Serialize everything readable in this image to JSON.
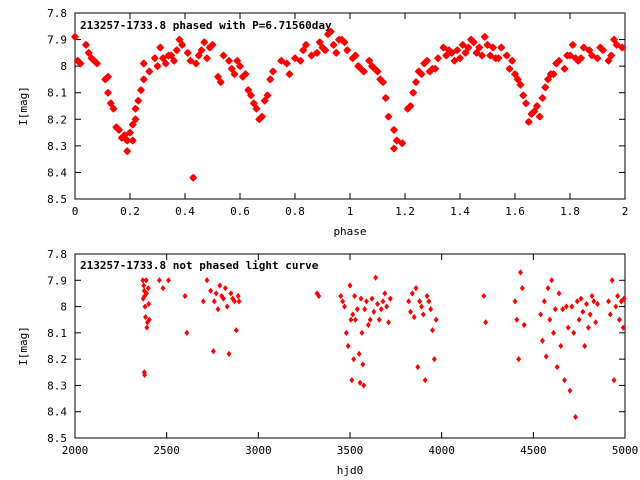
{
  "chart_data": [
    {
      "type": "scatter",
      "title": "213257-1733.8 phased with P=6.71560day",
      "xlabel": "phase",
      "ylabel": "I[mag]",
      "xlim": [
        0,
        2
      ],
      "ylim": [
        7.8,
        8.5
      ],
      "y_inverted": true,
      "x_ticks": [
        "0",
        "0.2",
        "0.4",
        "0.6",
        "0.8",
        "1",
        "1.2",
        "1.4",
        "1.6",
        "1.8",
        "2"
      ],
      "y_ticks": [
        "7.8",
        "7.9",
        "8",
        "8.1",
        "8.2",
        "8.3",
        "8.4",
        "8.5"
      ],
      "grid": false,
      "marker_color": "#ff0000",
      "marker": "star",
      "points": [
        [
          0.0,
          7.89
        ],
        [
          0.01,
          7.98
        ],
        [
          0.02,
          7.99
        ],
        [
          0.04,
          7.92
        ],
        [
          0.05,
          7.95
        ],
        [
          0.06,
          7.97
        ],
        [
          0.07,
          7.98
        ],
        [
          0.08,
          7.99
        ],
        [
          0.11,
          8.05
        ],
        [
          0.12,
          8.04
        ],
        [
          0.12,
          8.1
        ],
        [
          0.13,
          8.14
        ],
        [
          0.14,
          8.16
        ],
        [
          0.15,
          8.23
        ],
        [
          0.16,
          8.24
        ],
        [
          0.17,
          8.27
        ],
        [
          0.18,
          8.26
        ],
        [
          0.19,
          8.32
        ],
        [
          0.19,
          8.28
        ],
        [
          0.2,
          8.25
        ],
        [
          0.21,
          8.22
        ],
        [
          0.21,
          8.28
        ],
        [
          0.22,
          8.2
        ],
        [
          0.22,
          8.16
        ],
        [
          0.23,
          8.13
        ],
        [
          0.24,
          8.09
        ],
        [
          0.25,
          8.05
        ],
        [
          0.25,
          7.99
        ],
        [
          0.27,
          8.02
        ],
        [
          0.29,
          7.97
        ],
        [
          0.3,
          8.0
        ],
        [
          0.31,
          7.93
        ],
        [
          0.32,
          7.97
        ],
        [
          0.33,
          7.99
        ],
        [
          0.34,
          7.96
        ],
        [
          0.35,
          7.96
        ],
        [
          0.36,
          7.98
        ],
        [
          0.37,
          7.94
        ],
        [
          0.38,
          7.9
        ],
        [
          0.39,
          7.92
        ],
        [
          0.41,
          7.95
        ],
        [
          0.42,
          7.98
        ],
        [
          0.43,
          8.42
        ],
        [
          0.44,
          7.99
        ],
        [
          0.45,
          7.96
        ],
        [
          0.46,
          7.94
        ],
        [
          0.47,
          7.91
        ],
        [
          0.48,
          7.97
        ],
        [
          0.49,
          7.93
        ],
        [
          0.5,
          7.92
        ],
        [
          0.52,
          8.04
        ],
        [
          0.53,
          8.06
        ],
        [
          0.54,
          7.96
        ],
        [
          0.56,
          7.98
        ],
        [
          0.57,
          8.01
        ],
        [
          0.58,
          8.03
        ],
        [
          0.59,
          7.98
        ],
        [
          0.6,
          8.0
        ],
        [
          0.61,
          8.04
        ],
        [
          0.62,
          8.03
        ],
        [
          0.63,
          8.09
        ],
        [
          0.64,
          8.11
        ],
        [
          0.65,
          8.14
        ],
        [
          0.66,
          8.16
        ],
        [
          0.67,
          8.2
        ],
        [
          0.68,
          8.19
        ],
        [
          0.69,
          8.13
        ],
        [
          0.7,
          8.11
        ],
        [
          0.71,
          8.05
        ],
        [
          0.72,
          8.02
        ],
        [
          0.75,
          7.98
        ],
        [
          0.77,
          7.99
        ],
        [
          0.78,
          8.03
        ],
        [
          0.8,
          7.97
        ],
        [
          0.82,
          7.98
        ],
        [
          0.83,
          7.94
        ],
        [
          0.84,
          7.92
        ],
        [
          0.86,
          7.96
        ],
        [
          0.88,
          7.95
        ],
        [
          0.89,
          7.91
        ],
        [
          0.9,
          7.93
        ],
        [
          0.91,
          7.94
        ],
        [
          0.92,
          7.88
        ],
        [
          0.93,
          7.87
        ],
        [
          0.94,
          7.92
        ],
        [
          0.95,
          7.95
        ],
        [
          0.96,
          7.9
        ],
        [
          0.97,
          7.9
        ],
        [
          0.98,
          7.91
        ],
        [
          0.99,
          7.94
        ],
        [
          1.01,
          7.97
        ],
        [
          1.02,
          7.96
        ],
        [
          1.03,
          8.0
        ],
        [
          1.04,
          8.01
        ],
        [
          1.05,
          8.02
        ],
        [
          1.07,
          7.98
        ],
        [
          1.08,
          8.0
        ],
        [
          1.09,
          8.01
        ],
        [
          1.1,
          8.02
        ],
        [
          1.11,
          8.05
        ],
        [
          1.12,
          8.06
        ],
        [
          1.13,
          8.12
        ],
        [
          1.14,
          8.19
        ],
        [
          1.16,
          8.31
        ],
        [
          1.17,
          8.28
        ],
        [
          1.16,
          8.24
        ],
        [
          1.19,
          8.29
        ],
        [
          1.21,
          8.16
        ],
        [
          1.22,
          8.15
        ],
        [
          1.23,
          8.1
        ],
        [
          1.24,
          8.06
        ],
        [
          1.25,
          8.02
        ],
        [
          1.26,
          8.03
        ],
        [
          1.27,
          7.99
        ],
        [
          1.28,
          7.98
        ],
        [
          1.29,
          8.02
        ],
        [
          1.3,
          8.01
        ],
        [
          1.31,
          8.01
        ],
        [
          1.32,
          7.97
        ],
        [
          1.34,
          7.93
        ],
        [
          1.35,
          7.96
        ],
        [
          1.36,
          7.94
        ],
        [
          1.37,
          7.95
        ],
        [
          1.38,
          7.98
        ],
        [
          1.39,
          7.94
        ],
        [
          1.4,
          7.97
        ],
        [
          1.41,
          7.92
        ],
        [
          1.42,
          7.95
        ],
        [
          1.43,
          7.93
        ],
        [
          1.44,
          7.9
        ],
        [
          1.45,
          7.91
        ],
        [
          1.46,
          7.95
        ],
        [
          1.47,
          7.93
        ],
        [
          1.48,
          7.96
        ],
        [
          1.49,
          7.89
        ],
        [
          1.5,
          7.92
        ],
        [
          1.51,
          7.96
        ],
        [
          1.52,
          7.93
        ],
        [
          1.53,
          7.97
        ],
        [
          1.54,
          7.97
        ],
        [
          1.55,
          7.93
        ],
        [
          1.57,
          7.96
        ],
        [
          1.58,
          8.01
        ],
        [
          1.59,
          7.98
        ],
        [
          1.6,
          8.03
        ],
        [
          1.61,
          8.05
        ],
        [
          1.62,
          8.07
        ],
        [
          1.63,
          8.11
        ],
        [
          1.64,
          8.14
        ],
        [
          1.65,
          8.21
        ],
        [
          1.66,
          8.18
        ],
        [
          1.67,
          8.17
        ],
        [
          1.68,
          8.15
        ],
        [
          1.69,
          8.19
        ],
        [
          1.7,
          8.12
        ],
        [
          1.71,
          8.08
        ],
        [
          1.72,
          8.05
        ],
        [
          1.73,
          8.03
        ],
        [
          1.74,
          8.03
        ],
        [
          1.75,
          7.99
        ],
        [
          1.76,
          7.98
        ],
        [
          1.78,
          8.01
        ],
        [
          1.79,
          7.96
        ],
        [
          1.8,
          7.96
        ],
        [
          1.81,
          7.92
        ],
        [
          1.82,
          7.97
        ],
        [
          1.83,
          7.98
        ],
        [
          1.84,
          7.97
        ],
        [
          1.85,
          7.93
        ],
        [
          1.87,
          7.94
        ],
        [
          1.88,
          7.96
        ],
        [
          1.9,
          7.97
        ],
        [
          1.91,
          7.93
        ],
        [
          1.92,
          7.94
        ],
        [
          1.94,
          7.98
        ],
        [
          1.95,
          7.96
        ],
        [
          1.96,
          7.9
        ],
        [
          1.97,
          7.92
        ],
        [
          1.99,
          7.93
        ]
      ]
    },
    {
      "type": "scatter",
      "title": "213257-1733.8 not phased light curve",
      "xlabel": "hjd0",
      "ylabel": "I[mag]",
      "xlim": [
        2000,
        5000
      ],
      "ylim": [
        7.8,
        8.5
      ],
      "y_inverted": true,
      "x_ticks": [
        "2000",
        "2500",
        "3000",
        "3500",
        "4000",
        "4500",
        "5000"
      ],
      "y_ticks": [
        "7.8",
        "7.9",
        "8",
        "8.1",
        "8.2",
        "8.3",
        "8.4",
        "8.5"
      ],
      "grid": false,
      "marker_color": "#ff0000",
      "marker": "diamond",
      "points": [
        [
          2370,
          7.9
        ],
        [
          2375,
          7.92
        ],
        [
          2378,
          7.94
        ],
        [
          2380,
          7.96
        ],
        [
          2382,
          8.0
        ],
        [
          2385,
          8.04
        ],
        [
          2388,
          7.9
        ],
        [
          2390,
          7.95
        ],
        [
          2392,
          8.08
        ],
        [
          2395,
          8.06
        ],
        [
          2378,
          8.25
        ],
        [
          2380,
          8.26
        ],
        [
          2372,
          7.97
        ],
        [
          2400,
          7.93
        ],
        [
          2402,
          7.99
        ],
        [
          2405,
          8.05
        ],
        [
          2460,
          7.9
        ],
        [
          2480,
          7.93
        ],
        [
          2510,
          7.9
        ],
        [
          2600,
          7.96
        ],
        [
          2610,
          8.1
        ],
        [
          2700,
          7.98
        ],
        [
          2720,
          7.9
        ],
        [
          2740,
          7.94
        ],
        [
          2755,
          8.17
        ],
        [
          2760,
          7.98
        ],
        [
          2770,
          7.95
        ],
        [
          2780,
          8.01
        ],
        [
          2790,
          7.92
        ],
        [
          2800,
          7.96
        ],
        [
          2810,
          7.97
        ],
        [
          2820,
          7.93
        ],
        [
          2830,
          8.0
        ],
        [
          2840,
          8.18
        ],
        [
          2850,
          7.95
        ],
        [
          2860,
          7.97
        ],
        [
          2870,
          7.98
        ],
        [
          2880,
          8.09
        ],
        [
          2890,
          7.96
        ],
        [
          2895,
          7.98
        ],
        [
          3320,
          7.95
        ],
        [
          3330,
          7.96
        ],
        [
          3450,
          7.96
        ],
        [
          3460,
          7.98
        ],
        [
          3470,
          8.0
        ],
        [
          3480,
          8.1
        ],
        [
          3490,
          8.15
        ],
        [
          3500,
          7.92
        ],
        [
          3505,
          8.05
        ],
        [
          3510,
          8.28
        ],
        [
          3515,
          8.03
        ],
        [
          3520,
          8.2
        ],
        [
          3525,
          7.96
        ],
        [
          3530,
          8.05
        ],
        [
          3540,
          8.01
        ],
        [
          3550,
          8.18
        ],
        [
          3555,
          8.29
        ],
        [
          3560,
          7.97
        ],
        [
          3565,
          8.1
        ],
        [
          3570,
          8.22
        ],
        [
          3575,
          8.3
        ],
        [
          3580,
          8.01
        ],
        [
          3590,
          7.98
        ],
        [
          3600,
          8.07
        ],
        [
          3610,
          8.05
        ],
        [
          3620,
          7.97
        ],
        [
          3630,
          8.02
        ],
        [
          3640,
          7.89
        ],
        [
          3650,
          7.99
        ],
        [
          3660,
          8.05
        ],
        [
          3670,
          8.01
        ],
        [
          3680,
          7.98
        ],
        [
          3690,
          7.95
        ],
        [
          3700,
          8.0
        ],
        [
          3710,
          8.06
        ],
        [
          3720,
          7.97
        ],
        [
          3820,
          7.98
        ],
        [
          3830,
          8.02
        ],
        [
          3840,
          7.95
        ],
        [
          3850,
          8.04
        ],
        [
          3860,
          7.93
        ],
        [
          3870,
          8.23
        ],
        [
          3880,
          7.98
        ],
        [
          3890,
          8.0
        ],
        [
          3900,
          8.03
        ],
        [
          3910,
          8.28
        ],
        [
          3920,
          7.96
        ],
        [
          3930,
          7.98
        ],
        [
          3940,
          8.01
        ],
        [
          3950,
          8.09
        ],
        [
          3960,
          8.2
        ],
        [
          3970,
          8.05
        ],
        [
          4230,
          7.96
        ],
        [
          4240,
          8.06
        ],
        [
          4400,
          7.98
        ],
        [
          4410,
          8.05
        ],
        [
          4420,
          8.2
        ],
        [
          4430,
          7.87
        ],
        [
          4440,
          7.93
        ],
        [
          4450,
          8.07
        ],
        [
          4540,
          8.03
        ],
        [
          4550,
          8.13
        ],
        [
          4560,
          7.98
        ],
        [
          4570,
          8.19
        ],
        [
          4580,
          7.93
        ],
        [
          4590,
          8.05
        ],
        [
          4600,
          7.9
        ],
        [
          4610,
          8.1
        ],
        [
          4620,
          8.01
        ],
        [
          4630,
          8.23
        ],
        [
          4640,
          7.95
        ],
        [
          4650,
          8.15
        ],
        [
          4660,
          8.01
        ],
        [
          4670,
          8.28
        ],
        [
          4680,
          8.0
        ],
        [
          4690,
          8.08
        ],
        [
          4700,
          8.32
        ],
        [
          4710,
          8.0
        ],
        [
          4720,
          8.1
        ],
        [
          4730,
          8.42
        ],
        [
          4740,
          7.98
        ],
        [
          4750,
          8.05
        ],
        [
          4760,
          7.97
        ],
        [
          4770,
          8.02
        ],
        [
          4780,
          8.15
        ],
        [
          4790,
          7.99
        ],
        [
          4800,
          8.08
        ],
        [
          4810,
          8.03
        ],
        [
          4820,
          7.96
        ],
        [
          4830,
          7.98
        ],
        [
          4840,
          8.06
        ],
        [
          4850,
          7.99
        ],
        [
          4910,
          7.98
        ],
        [
          4920,
          8.03
        ],
        [
          4930,
          7.9
        ],
        [
          4940,
          8.28
        ],
        [
          4950,
          8.0
        ],
        [
          4960,
          7.96
        ],
        [
          4970,
          8.05
        ],
        [
          4980,
          7.98
        ],
        [
          4990,
          8.08
        ],
        [
          4995,
          7.97
        ]
      ]
    }
  ]
}
